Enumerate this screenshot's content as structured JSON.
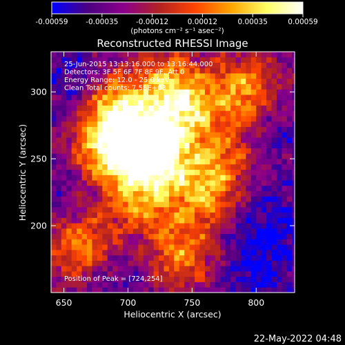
{
  "colorbar": {
    "ticks": [
      "-0.00059",
      "-0.00035",
      "-0.00012",
      "0.00012",
      "0.00035",
      "0.00059"
    ],
    "unit_label": "(photons cm⁻² s⁻¹ asec⁻²)",
    "range": [
      -0.00059,
      0.00059
    ]
  },
  "chart_data": {
    "type": "heatmap",
    "title": "Reconstructed RHESSI Image",
    "xlabel": "Heliocentric X (arcsec)",
    "ylabel": "Heliocentric Y (arcsec)",
    "xlim": [
      640,
      830
    ],
    "ylim": [
      150,
      330
    ],
    "xticks": [
      650,
      700,
      750,
      800
    ],
    "yticks": [
      200,
      250,
      300
    ],
    "info_lines": [
      "25-Jun-2015 13:13:16.000 to 13:16:44.000",
      "Detectors: 3F 5F 6F 7F 8F 9F, Att 0",
      "Energy Range: 12.0 - 25.0 keV",
      "Clean    Total counts: 7.58E+03"
    ],
    "peak_label": "Position of Peak = [724,254]",
    "peak": [
      724,
      254
    ],
    "bright_regions": [
      {
        "x": 724,
        "y": 254,
        "strength": 1.0
      },
      {
        "x": 705,
        "y": 262,
        "strength": 0.85
      },
      {
        "x": 690,
        "y": 290,
        "strength": 0.75
      },
      {
        "x": 680,
        "y": 255,
        "strength": 0.7
      },
      {
        "x": 745,
        "y": 288,
        "strength": 0.7
      },
      {
        "x": 760,
        "y": 225,
        "strength": 0.7
      },
      {
        "x": 740,
        "y": 180,
        "strength": 0.6
      },
      {
        "x": 665,
        "y": 185,
        "strength": 0.65
      },
      {
        "x": 790,
        "y": 300,
        "strength": 0.7
      },
      {
        "x": 775,
        "y": 255,
        "strength": 0.4
      },
      {
        "x": 730,
        "y": 305,
        "strength": 0.5
      },
      {
        "x": 710,
        "y": 220,
        "strength": 0.6
      }
    ],
    "dark_regions": [
      {
        "x": 655,
        "y": 310,
        "strength": 0.8
      },
      {
        "x": 810,
        "y": 200,
        "strength": 0.9
      },
      {
        "x": 800,
        "y": 160,
        "strength": 0.8
      },
      {
        "x": 690,
        "y": 160,
        "strength": 0.6
      },
      {
        "x": 820,
        "y": 270,
        "strength": 0.6
      },
      {
        "x": 650,
        "y": 230,
        "strength": 0.5
      }
    ],
    "colormap": [
      "#0000ff",
      "#4b0082",
      "#8b008b",
      "#b22222",
      "#ff4500",
      "#ffa500",
      "#ffff66",
      "#ffffff"
    ]
  },
  "timestamp": "22-May-2022 04:48"
}
